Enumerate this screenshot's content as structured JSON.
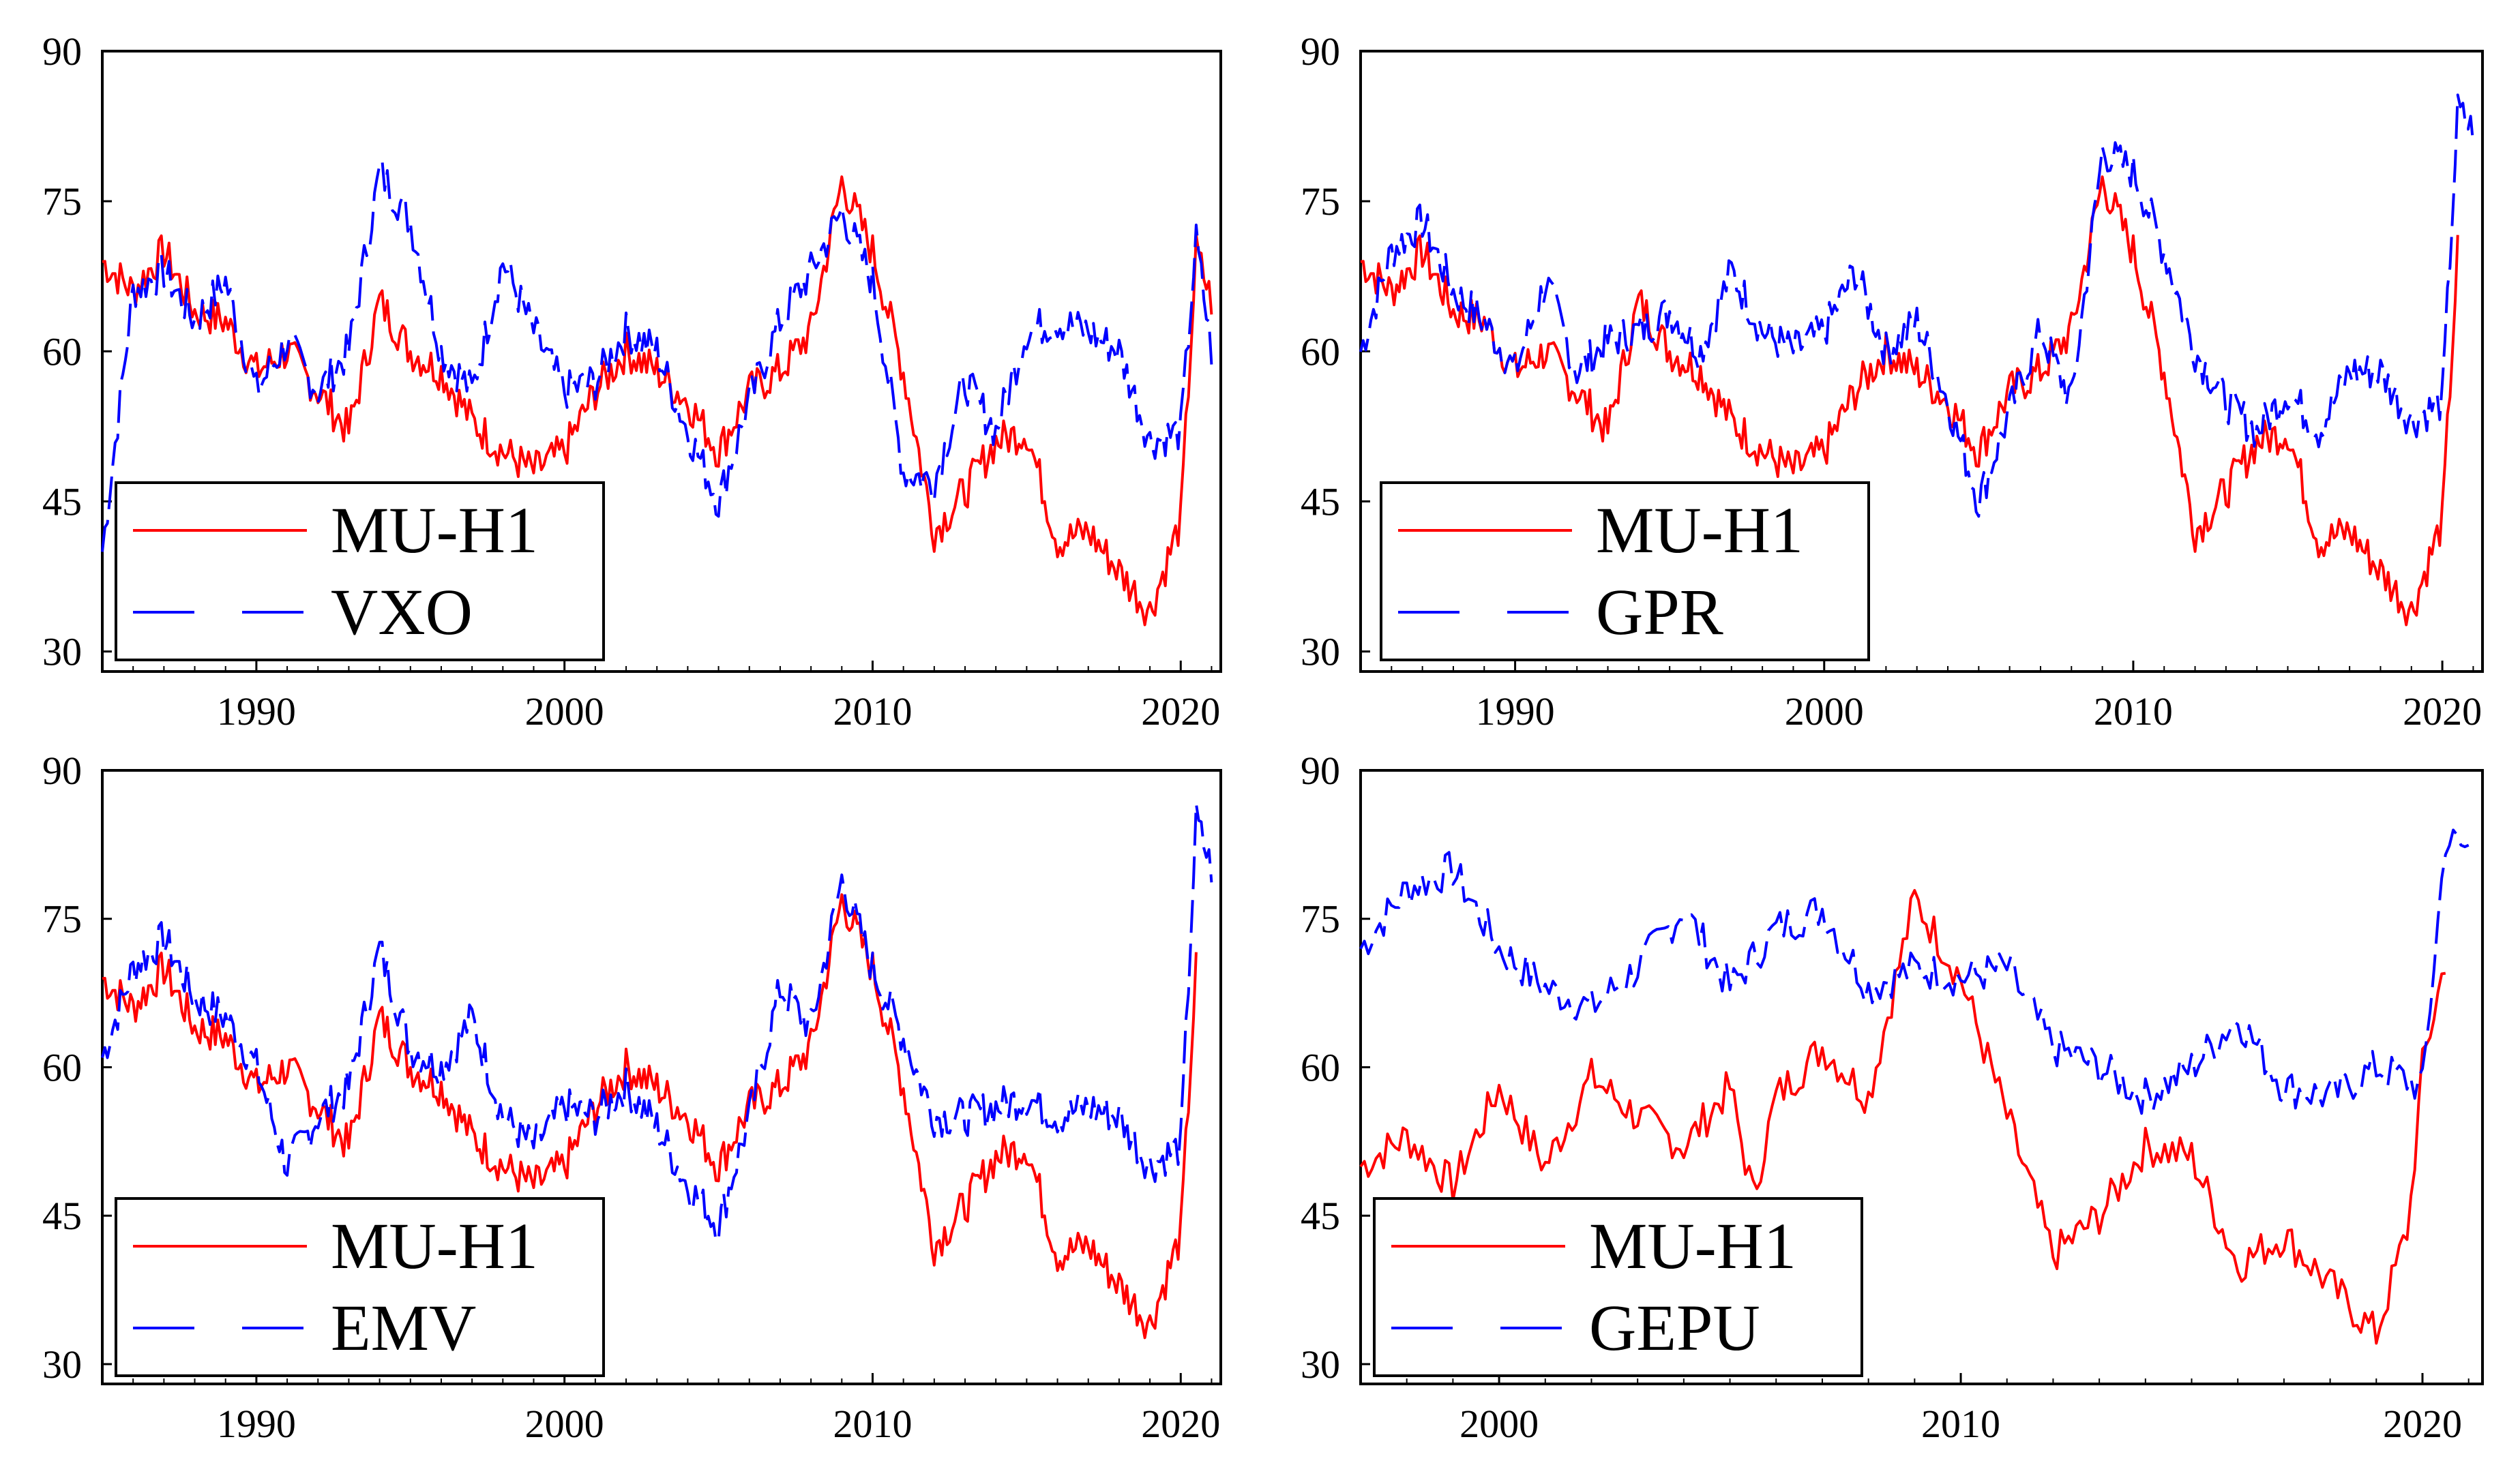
{
  "chart_data": [
    {
      "id": "vxo",
      "type": "line",
      "xlim": [
        1985,
        2021.3
      ],
      "ylim": [
        28,
        90
      ],
      "yticks": [
        30,
        45,
        60,
        75,
        90
      ],
      "xticks": [
        1990,
        2000,
        2010,
        2020
      ],
      "legend_position": "bottom-left",
      "series": [
        {
          "name": "MU-H1",
          "color": "#ff0000",
          "dash": "solid",
          "x": [
            1985,
            1986,
            1987,
            1988,
            1989,
            1990,
            1991,
            1992,
            1993,
            1994,
            1995,
            1996,
            1997,
            1998,
            1999,
            2000,
            2001,
            2002,
            2003,
            2004,
            2005,
            2006,
            2007,
            2008,
            2009,
            2010,
            2011,
            2012,
            2013,
            2014,
            2015,
            2016,
            2017,
            2018,
            2019,
            2020,
            2020.5,
            2021
          ],
          "y": [
            69,
            66,
            70,
            64,
            63,
            58,
            60,
            56,
            52,
            65,
            60,
            58,
            53,
            50,
            48,
            50,
            56,
            60,
            58,
            55,
            50,
            56,
            58,
            62,
            77,
            70,
            58,
            42,
            46,
            51,
            52,
            41,
            42,
            38,
            34,
            43,
            70,
            65
          ]
        },
        {
          "name": "VXO",
          "color": "#0000ff",
          "dash": "long",
          "x": [
            1985,
            1986,
            1987,
            1988,
            1989,
            1990,
            1991,
            1992,
            1993,
            1994,
            1995,
            1996,
            1997,
            1998,
            1999,
            2000,
            2001,
            2002,
            2003,
            2004,
            2005,
            2006,
            2007,
            2008,
            2009,
            2010,
            2011,
            2012,
            2013,
            2014,
            2015,
            2016,
            2017,
            2018,
            2019,
            2020,
            2020.5,
            2021
          ],
          "y": [
            40,
            66,
            68,
            63,
            67,
            56,
            61,
            56,
            60,
            78,
            73,
            60,
            56,
            69,
            62,
            56,
            57,
            62,
            60,
            52,
            45,
            55,
            63,
            68,
            74,
            67,
            48,
            47,
            57,
            52,
            62,
            63,
            62,
            60,
            51,
            52,
            71,
            60
          ]
        }
      ]
    },
    {
      "id": "gpr",
      "type": "line",
      "xlim": [
        1985,
        2021.3
      ],
      "ylim": [
        28,
        90
      ],
      "yticks": [
        30,
        45,
        60,
        75,
        90
      ],
      "xticks": [
        1990,
        2000,
        2010,
        2020
      ],
      "legend_position": "bottom-left",
      "series": [
        {
          "name": "MU-H1",
          "color": "#ff0000",
          "dash": "solid",
          "x": [
            1985,
            1986,
            1987,
            1988,
            1989,
            1990,
            1991,
            1992,
            1993,
            1994,
            1995,
            1996,
            1997,
            1998,
            1999,
            2000,
            2001,
            2002,
            2003,
            2004,
            2005,
            2006,
            2007,
            2008,
            2009,
            2010,
            2011,
            2012,
            2013,
            2014,
            2015,
            2016,
            2017,
            2018,
            2019,
            2020,
            2020.5
          ],
          "y": [
            69,
            66,
            70,
            64,
            63,
            58,
            60,
            56,
            52,
            65,
            60,
            58,
            53,
            50,
            48,
            50,
            56,
            60,
            58,
            55,
            50,
            56,
            58,
            62,
            77,
            70,
            58,
            42,
            46,
            51,
            52,
            41,
            42,
            38,
            34,
            43,
            70
          ]
        },
        {
          "name": "GPR",
          "color": "#0000ff",
          "dash": "long",
          "x": [
            1985,
            1986,
            1987,
            1988,
            1989,
            1990,
            1991,
            1992,
            1993,
            1994,
            1995,
            1996,
            1997,
            1998,
            1999,
            2000,
            2001,
            2002,
            2003,
            2004,
            2005,
            2006,
            2007,
            2008,
            2009,
            2010,
            2011,
            2012,
            2013,
            2014,
            2015,
            2016,
            2017,
            2018,
            2019,
            2020,
            2020.5,
            2021
          ],
          "y": [
            60,
            70,
            73,
            66,
            63,
            58,
            67,
            58,
            61,
            62,
            64,
            60,
            68,
            62,
            60,
            62,
            68,
            60,
            63,
            55,
            45,
            54,
            62,
            55,
            80,
            78,
            70,
            60,
            55,
            52,
            56,
            52,
            58,
            58,
            53,
            55,
            84,
            82
          ]
        }
      ]
    },
    {
      "id": "emv",
      "type": "line",
      "xlim": [
        1985,
        2021.3
      ],
      "ylim": [
        28,
        90
      ],
      "yticks": [
        30,
        45,
        60,
        75,
        90
      ],
      "xticks": [
        1990,
        2000,
        2010,
        2020
      ],
      "legend_position": "bottom-left",
      "series": [
        {
          "name": "MU-H1",
          "color": "#ff0000",
          "dash": "solid",
          "x": [
            1985,
            1986,
            1987,
            1988,
            1989,
            1990,
            1991,
            1992,
            1993,
            1994,
            1995,
            1996,
            1997,
            1998,
            1999,
            2000,
            2001,
            2002,
            2003,
            2004,
            2005,
            2006,
            2007,
            2008,
            2009,
            2010,
            2011,
            2012,
            2013,
            2014,
            2015,
            2016,
            2017,
            2018,
            2019,
            2020,
            2020.5
          ],
          "y": [
            69,
            66,
            70,
            64,
            63,
            58,
            60,
            56,
            52,
            65,
            60,
            58,
            53,
            50,
            48,
            50,
            56,
            60,
            58,
            55,
            50,
            56,
            58,
            62,
            77,
            70,
            58,
            42,
            46,
            51,
            52,
            41,
            42,
            38,
            34,
            43,
            70
          ]
        },
        {
          "name": "EMV",
          "color": "#0000ff",
          "dash": "long",
          "x": [
            1985,
            1986,
            1987,
            1988,
            1989,
            1990,
            1991,
            1992,
            1993,
            1994,
            1995,
            1996,
            1997,
            1998,
            1999,
            2000,
            2001,
            2002,
            2003,
            2004,
            2005,
            2006,
            2007,
            2008,
            2009,
            2010,
            2011,
            2012,
            2013,
            2014,
            2015,
            2016,
            2017,
            2018,
            2019,
            2020,
            2020.5,
            2021
          ],
          "y": [
            61,
            70,
            73,
            67,
            65,
            60,
            50,
            55,
            58,
            72,
            62,
            60,
            65,
            55,
            52,
            56,
            55,
            58,
            54,
            48,
            44,
            55,
            68,
            64,
            79,
            70,
            63,
            55,
            55,
            56,
            57,
            55,
            56,
            55,
            50,
            52,
            85,
            80
          ]
        }
      ]
    },
    {
      "id": "gepu",
      "type": "line",
      "xlim": [
        1997,
        2021.3
      ],
      "ylim": [
        28,
        90
      ],
      "yticks": [
        30,
        45,
        60,
        75,
        90
      ],
      "xticks": [
        2000,
        2010,
        2020
      ],
      "legend_position": "bottom-left",
      "series": [
        {
          "name": "MU-H1",
          "color": "#ff0000",
          "dash": "solid",
          "x": [
            1997,
            1998,
            1999,
            2000,
            2001,
            2002,
            2003,
            2004,
            2005,
            2005.5,
            2006,
            2007,
            2008,
            2009,
            2010,
            2011,
            2012,
            2013,
            2014,
            2015,
            2016,
            2017,
            2018,
            2019,
            2019.7,
            2020,
            2020.5
          ],
          "y": [
            50,
            53,
            48,
            58,
            50,
            59,
            55,
            52,
            58,
            47,
            57,
            62,
            57,
            77,
            69,
            55,
            41,
            45,
            52,
            51,
            40,
            43,
            38,
            33,
            44,
            60,
            71
          ]
        },
        {
          "name": "GEPU",
          "color": "#0000ff",
          "dash": "long",
          "x": [
            1997,
            1998,
            1999,
            2000,
            2001,
            2002,
            2003,
            2004,
            2005,
            2006,
            2007,
            2008,
            2009,
            2010,
            2011,
            2012,
            2013,
            2014,
            2015,
            2016,
            2017,
            2018,
            2019,
            2020,
            2020.5,
            2021
          ],
          "y": [
            72,
            78,
            80,
            72,
            68,
            66,
            70,
            76,
            68,
            74,
            76,
            68,
            70,
            69,
            70,
            62,
            60,
            57,
            60,
            65,
            58,
            57,
            60,
            58,
            83,
            82
          ]
        }
      ]
    }
  ]
}
